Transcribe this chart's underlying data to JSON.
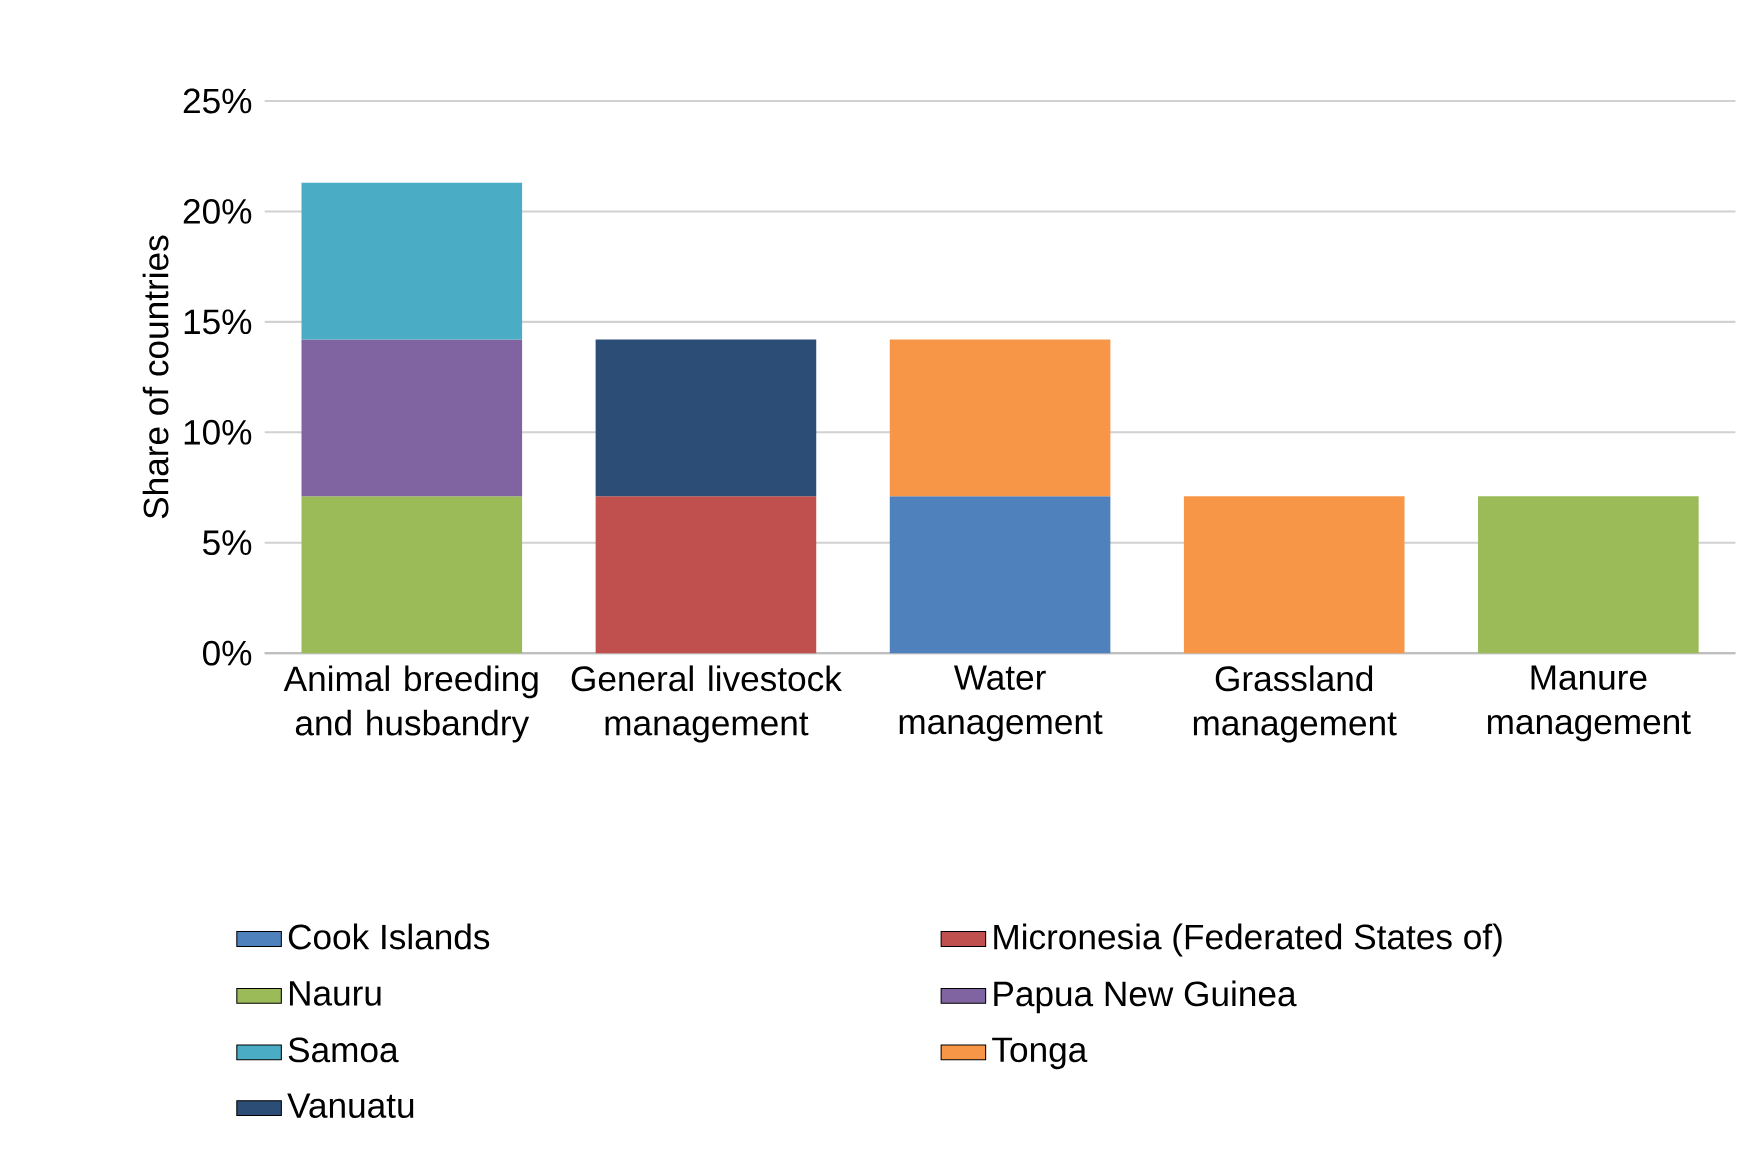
{
  "chart_data": {
    "type": "bar",
    "stacked": true,
    "ylabel": "Share of countries",
    "categories": [
      "Animal breeding and husbandry",
      "General livestock management",
      "Water management",
      "Grassland management",
      "Manure management"
    ],
    "ylim": [
      0,
      25
    ],
    "yticks": [
      {
        "value": 0,
        "label": "0%"
      },
      {
        "value": 5,
        "label": "5%"
      },
      {
        "value": 10,
        "label": "10%"
      },
      {
        "value": 15,
        "label": "15%"
      },
      {
        "value": 20,
        "label": "20%"
      },
      {
        "value": 25,
        "label": "25%"
      }
    ],
    "grid": "y",
    "legend": "bottom",
    "series": [
      {
        "name": "Cook Islands",
        "color": "#4f81bd",
        "values": [
          null,
          null,
          7.1,
          null,
          null
        ]
      },
      {
        "name": "Micronesia (Federated States of)",
        "color": "#c0504d",
        "values": [
          null,
          7.1,
          null,
          null,
          null
        ]
      },
      {
        "name": "Nauru",
        "color": "#9bbb59",
        "values": [
          7.1,
          null,
          null,
          null,
          7.1
        ]
      },
      {
        "name": "Papua New Guinea",
        "color": "#8064a2",
        "values": [
          7.1,
          null,
          null,
          null,
          null
        ]
      },
      {
        "name": "Samoa",
        "color": "#4bacc6",
        "values": [
          7.1,
          null,
          null,
          null,
          null
        ]
      },
      {
        "name": "Tonga",
        "color": "#f79646",
        "values": [
          null,
          null,
          7.1,
          7.1,
          null
        ]
      },
      {
        "name": "Vanuatu",
        "color": "#2c4d75",
        "values": [
          null,
          7.1,
          null,
          null,
          null
        ]
      }
    ]
  }
}
